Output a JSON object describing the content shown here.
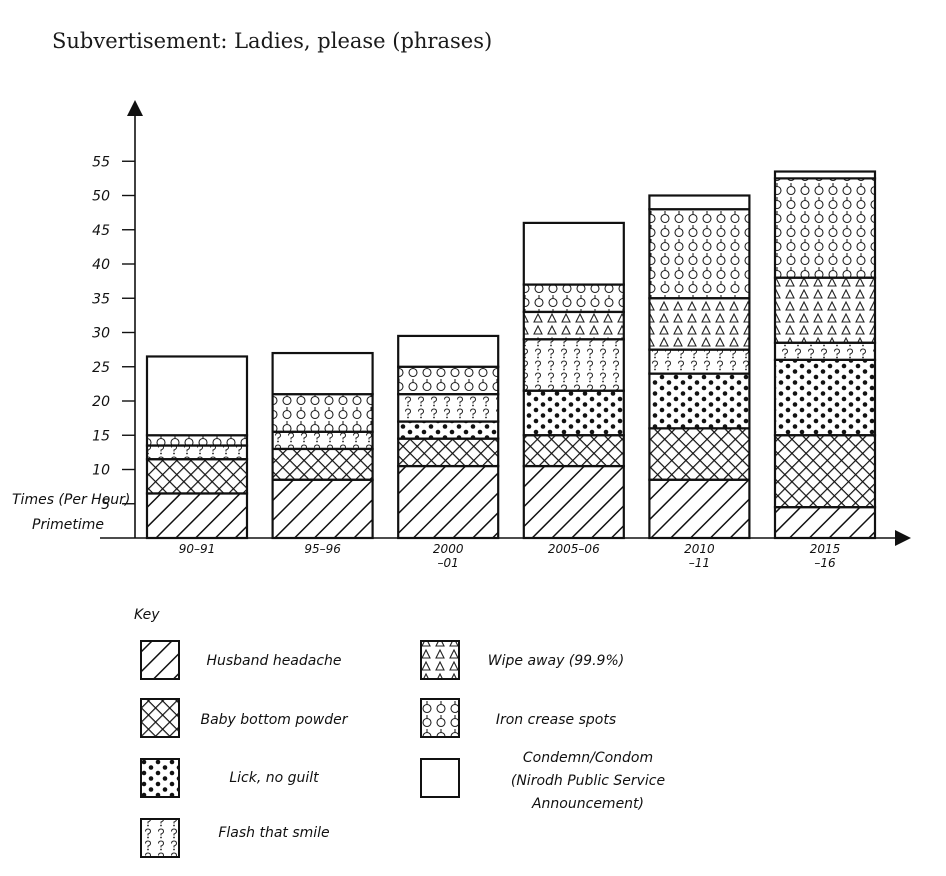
{
  "chart_data": {
    "type": "bar",
    "stacked": true,
    "title": "Subvertisement: Ladies, please (phrases)",
    "ylabel_lines": [
      "Times (Per Hour)",
      "Primetime"
    ],
    "ylim": [
      0,
      55
    ],
    "yticks": [
      5,
      10,
      15,
      20,
      25,
      30,
      35,
      40,
      45,
      50,
      55
    ],
    "categories": [
      {
        "lines": [
          "90–91"
        ]
      },
      {
        "lines": [
          "95–96"
        ]
      },
      {
        "lines": [
          "2000",
          "–01"
        ]
      },
      {
        "lines": [
          "2005–06"
        ]
      },
      {
        "lines": [
          "2010",
          "–11"
        ]
      },
      {
        "lines": [
          "2015",
          "–16"
        ]
      }
    ],
    "series": [
      {
        "name": "Husband headache",
        "pattern": "diagonal",
        "values": [
          6.5,
          8.5,
          10.5,
          10.5,
          8.5,
          4.5
        ]
      },
      {
        "name": "Baby bottom powder",
        "pattern": "crosshatch",
        "values": [
          5,
          4.5,
          4,
          4.5,
          7.5,
          10.5
        ]
      },
      {
        "name": "Lick, no guilt",
        "pattern": "dots",
        "values": [
          0,
          0,
          2.5,
          6.5,
          8,
          11
        ]
      },
      {
        "name": "Flash that smile",
        "pattern": "question",
        "values": [
          2,
          2.5,
          4,
          7.5,
          3.5,
          2.5
        ]
      },
      {
        "name": "Wipe away (99.9%)",
        "pattern": "triangle",
        "values": [
          0,
          0,
          0,
          4,
          7.5,
          9.5
        ]
      },
      {
        "name": "Iron crease spots",
        "pattern": "circle",
        "values": [
          1.5,
          5.5,
          4,
          4,
          13,
          14.5
        ]
      },
      {
        "name": "Condemn/Condom (Nirodh Public Service Announcement)",
        "label_lines": [
          "Condemn/Condom",
          "(Nirodh Public Service",
          "Announcement)"
        ],
        "pattern": "blank",
        "values": [
          11.5,
          6,
          4.5,
          9,
          2,
          1
        ]
      }
    ]
  },
  "key": {
    "label": "Key"
  }
}
